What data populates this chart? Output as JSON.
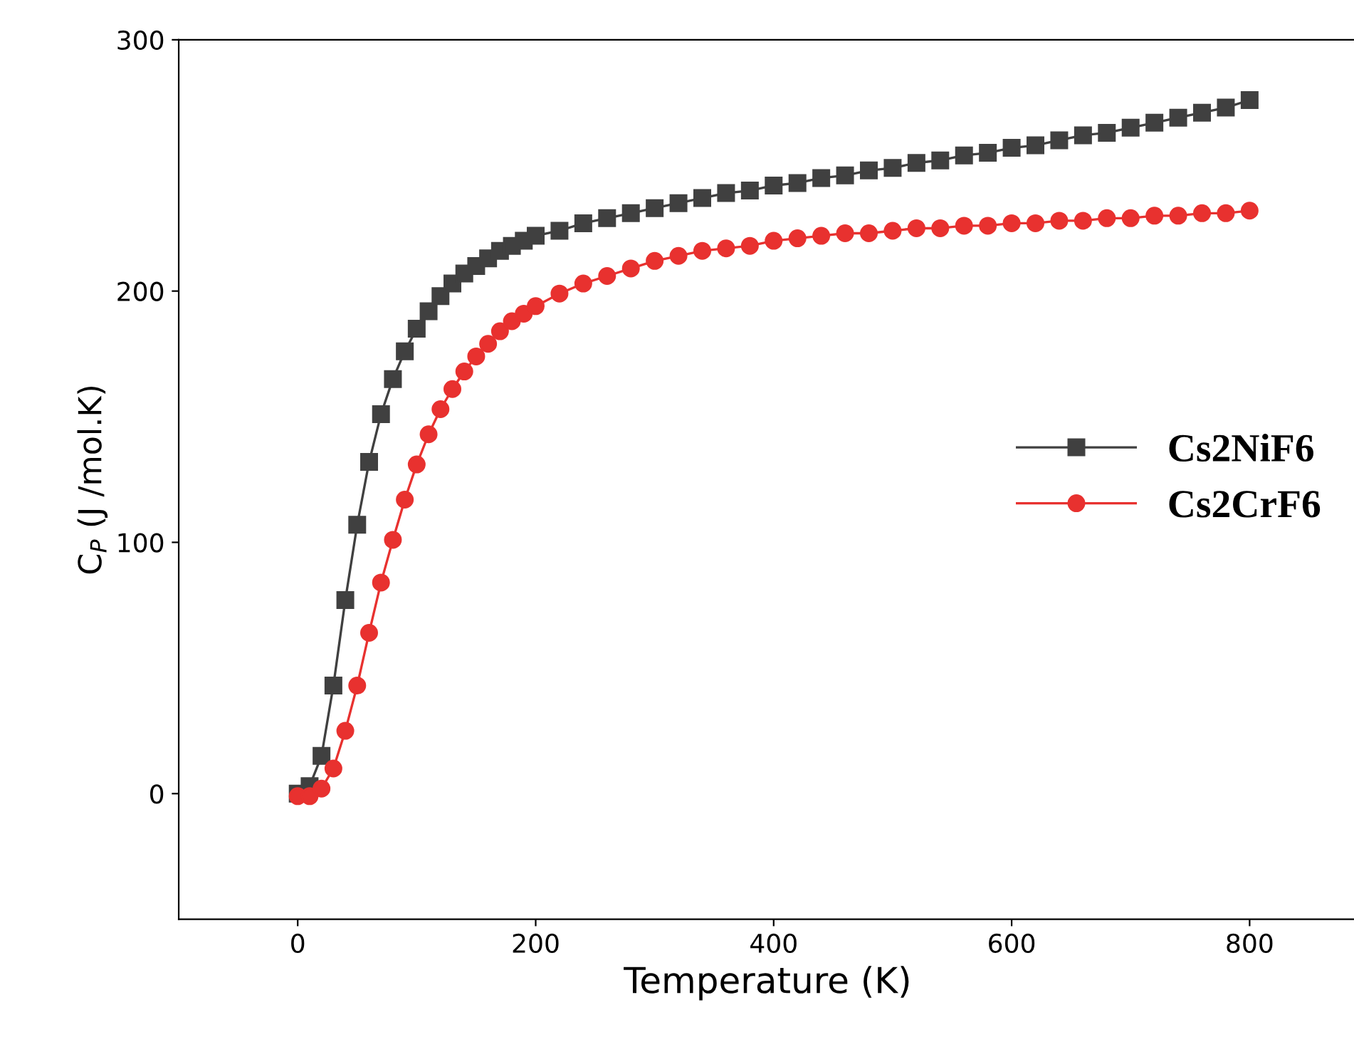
{
  "chart_data": {
    "type": "line",
    "xlabel": "Temperature (K)",
    "ylabel": "C$_{P}$ (J /mol.K)",
    "xlim": [
      -100,
      890
    ],
    "ylim": [
      -50,
      300
    ],
    "xticks": [
      0,
      200,
      400,
      600,
      800
    ],
    "yticks": [
      0,
      100,
      200,
      300
    ],
    "grid": false,
    "legend": "right",
    "series": [
      {
        "name": "Cs2NiF6",
        "color": "#404040",
        "marker": "square",
        "x": [
          0,
          10,
          20,
          30,
          40,
          50,
          60,
          70,
          80,
          90,
          100,
          110,
          120,
          130,
          140,
          150,
          160,
          170,
          180,
          190,
          200,
          220,
          240,
          260,
          280,
          300,
          320,
          340,
          360,
          380,
          400,
          420,
          440,
          460,
          480,
          500,
          520,
          540,
          560,
          580,
          600,
          620,
          640,
          660,
          680,
          700,
          720,
          740,
          760,
          780,
          800
        ],
        "values": [
          0,
          3,
          15,
          43,
          77,
          107,
          132,
          151,
          165,
          176,
          185,
          192,
          198,
          203,
          207,
          210,
          213,
          216,
          218,
          220,
          222,
          224,
          227,
          229,
          231,
          233,
          235,
          237,
          239,
          240,
          242,
          243,
          245,
          246,
          248,
          249,
          251,
          252,
          254,
          255,
          257,
          258,
          260,
          262,
          263,
          265,
          267,
          269,
          271,
          273,
          276
        ]
      },
      {
        "name": "Cs2CrF6",
        "color": "#e8312f",
        "marker": "circle",
        "x": [
          0,
          10,
          20,
          30,
          40,
          50,
          60,
          70,
          80,
          90,
          100,
          110,
          120,
          130,
          140,
          150,
          160,
          170,
          180,
          190,
          200,
          220,
          240,
          260,
          280,
          300,
          320,
          340,
          360,
          380,
          400,
          420,
          440,
          460,
          480,
          500,
          520,
          540,
          560,
          580,
          600,
          620,
          640,
          660,
          680,
          700,
          720,
          740,
          760,
          780,
          800
        ],
        "values": [
          -1,
          -1,
          2,
          10,
          25,
          43,
          64,
          84,
          101,
          117,
          131,
          143,
          153,
          161,
          168,
          174,
          179,
          184,
          188,
          191,
          194,
          199,
          203,
          206,
          209,
          212,
          214,
          216,
          217,
          218,
          220,
          221,
          222,
          223,
          223,
          224,
          225,
          225,
          226,
          226,
          227,
          227,
          228,
          228,
          229,
          229,
          230,
          230,
          231,
          231,
          232
        ]
      }
    ]
  }
}
